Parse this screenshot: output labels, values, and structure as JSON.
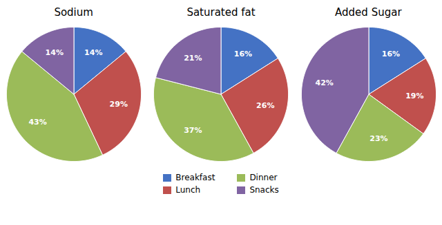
{
  "chart_data": [
    {
      "type": "pie",
      "title": "Sodium",
      "categories": [
        "Breakfast",
        "Lunch",
        "Dinner",
        "Snacks"
      ],
      "values": [
        14,
        29,
        43,
        14
      ],
      "value_labels": [
        "14%",
        "29%",
        "43%",
        "14%"
      ],
      "colors": [
        "#4472C4",
        "#C0504D",
        "#9BBB59",
        "#8064A2"
      ],
      "data_labels": true,
      "legend": "bottom"
    },
    {
      "type": "pie",
      "title": "Saturated fat",
      "categories": [
        "Breakfast",
        "Lunch",
        "Dinner",
        "Snacks"
      ],
      "values": [
        16,
        26,
        37,
        21
      ],
      "value_labels": [
        "16%",
        "26%",
        "37%",
        "21%"
      ],
      "colors": [
        "#4472C4",
        "#C0504D",
        "#9BBB59",
        "#8064A2"
      ],
      "data_labels": true,
      "legend": "bottom"
    },
    {
      "type": "pie",
      "title": "Added Sugar",
      "categories": [
        "Breakfast",
        "Lunch",
        "Dinner",
        "Snacks"
      ],
      "values": [
        16,
        19,
        23,
        42
      ],
      "value_labels": [
        "16%",
        "19%",
        "23%",
        "42%"
      ],
      "colors": [
        "#4472C4",
        "#C0504D",
        "#9BBB59",
        "#8064A2"
      ],
      "data_labels": true,
      "legend": "bottom"
    }
  ]
}
